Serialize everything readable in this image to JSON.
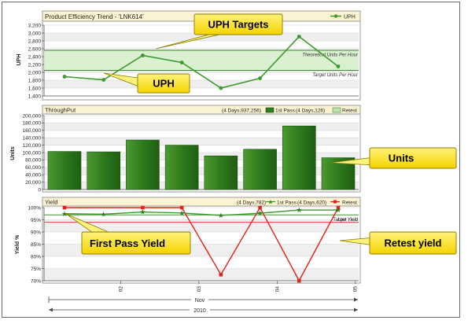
{
  "colors": {
    "header_bg": "#fcf3d2",
    "band_fill": "#d8f0cc",
    "band_line": "#3c8a32",
    "uph_line": "#3c9a2c",
    "bar_fill": "#2f7d20",
    "bar_light": "#6dae4a",
    "retest_line": "#e0231c",
    "firstpass_line": "#3c9a2c",
    "low_yield_line": "#e04040",
    "target_yield_line": "#3c9a2c",
    "callout_fill": "#ffe400",
    "callout_border": "#8a7a00",
    "grid_stripe": "#efefef"
  },
  "chart_data": [
    {
      "type": "line",
      "title": "Product Efficiency Trend - 'LNK614'",
      "ylabel": "UPH",
      "ylim": [
        1400,
        3200
      ],
      "yticks": [
        "3,200",
        "3,000",
        "2,800",
        "2,600",
        "2,400",
        "2,200",
        "2,000",
        "1,800",
        "1,600",
        "1,400"
      ],
      "series": [
        {
          "name": "UPH",
          "values": [
            1890,
            1810,
            2430,
            2250,
            1600,
            1850,
            2910,
            2150
          ]
        }
      ],
      "reference_lines": [
        {
          "label": "Theoretical Units Per Hour",
          "value": 2560
        },
        {
          "label": "Target Units Per Hour",
          "value": 2050
        }
      ],
      "legend": "top-right",
      "grid": true
    },
    {
      "type": "bar",
      "title": "ThroughPut",
      "ylabel": "Units",
      "ylim": [
        0,
        200000
      ],
      "yticks": [
        "200,000",
        "180,000",
        "160,000",
        "140,000",
        "120,000",
        "100,000",
        "80,000",
        "60,000",
        "40,000",
        "20,000",
        "0"
      ],
      "series": [
        {
          "name": "1st Pass",
          "values": [
            103000,
            102000,
            134000,
            120000,
            91000,
            109000,
            172000,
            86000
          ]
        }
      ],
      "legend_entries": [
        {
          "summary": "(4 Days,937,256)",
          "name": "1st Pass"
        },
        {
          "summary": "(4 Days,126)",
          "name": "Retest"
        }
      ],
      "legend": "top-right",
      "grid": true
    },
    {
      "type": "line",
      "title": "Yield",
      "ylabel": "Yield %",
      "ylim": [
        70,
        100
      ],
      "yticks": [
        "100%",
        "95%",
        "90%",
        "85%",
        "80%",
        "75%",
        "70%"
      ],
      "series": [
        {
          "name": "1st Pass",
          "values": [
            97.5,
            97.3,
            98.2,
            97.8,
            96.8,
            97.7,
            99.0,
            99.0
          ]
        },
        {
          "name": "Retest",
          "values": [
            100,
            null,
            100,
            100,
            72.5,
            100,
            70,
            100
          ]
        }
      ],
      "reference_lines": [
        {
          "label": "Target Yield",
          "value": 97.0
        },
        {
          "label": "Low Yield",
          "value": 94.0
        }
      ],
      "legend_entries": [
        {
          "summary": "(4 Days,782)",
          "name": "1st Pass"
        },
        {
          "summary": "(4 Days,620)",
          "name": "Retest"
        }
      ],
      "legend": "top-right",
      "grid": true
    }
  ],
  "x_axis": {
    "ticks": [
      "02",
      "03",
      "04",
      "05"
    ],
    "month": "Nov",
    "year": "2010"
  },
  "callouts": {
    "uph_targets": "UPH Targets",
    "uph": "UPH",
    "units": "Units",
    "first_pass_yield": "First Pass Yield",
    "retest_yield": "Retest yield"
  }
}
